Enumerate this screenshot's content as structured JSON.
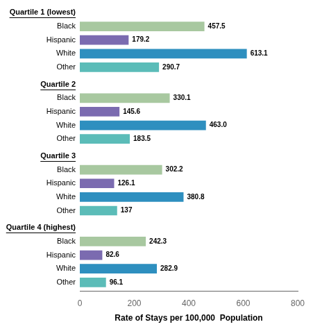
{
  "chart_data": {
    "type": "bar",
    "orientation": "horizontal",
    "categories": [
      "Quartile 1 (lowest)",
      "Quartile 2",
      "Quartile 3",
      "Quartile 4 (highest)"
    ],
    "series": [
      {
        "name": "Black",
        "color": "#a8c8a0",
        "values": [
          457.5,
          330.1,
          302.2,
          242.3
        ]
      },
      {
        "name": "Hispanic",
        "color": "#7b6bb0",
        "values": [
          179.2,
          145.6,
          126.1,
          82.6
        ]
      },
      {
        "name": "White",
        "color": "#2e8fbf",
        "values": [
          613.1,
          463.0,
          380.8,
          282.9
        ],
        "value_labels": [
          "613.1",
          "463.0",
          "380.8",
          "282.9"
        ]
      },
      {
        "name": "Other",
        "color": "#5bbcb8",
        "values": [
          290.7,
          183.5,
          137.0,
          96.1
        ]
      }
    ],
    "xlabel": "Rate of Stays per 100,000  Population",
    "xlim": [
      0,
      800
    ],
    "xticks": [
      0,
      200,
      400,
      600,
      800
    ],
    "data_labels": true,
    "grid": false,
    "tick_labels": "x"
  }
}
